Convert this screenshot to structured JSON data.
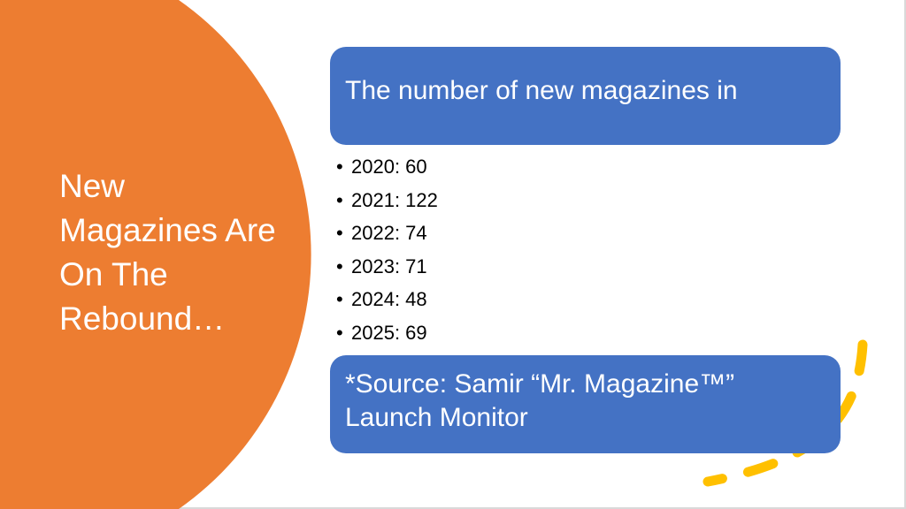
{
  "slide": {
    "title": "New Magazines Are On The Rebound…",
    "header_box": "The number of new magazines in",
    "items": [
      {
        "label": "2020: 60"
      },
      {
        "label": "2021: 122"
      },
      {
        "label": "2022: 74"
      },
      {
        "label": "2023: 71"
      },
      {
        "label": "2024: 48"
      },
      {
        "label": "2025: 69"
      }
    ],
    "source_line1": "*Source: Samir “Mr. Magazine™”",
    "source_line2": "Launch Monitor"
  },
  "colors": {
    "circle": "#ED7D31",
    "box": "#4472C4",
    "dash": "#FFC000"
  }
}
